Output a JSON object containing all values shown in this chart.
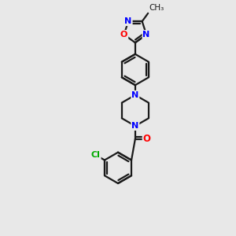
{
  "background_color": "#e8e8e8",
  "bond_color": "#1a1a1a",
  "n_color": "#0000ff",
  "o_color": "#ff0000",
  "cl_color": "#00aa00",
  "text_color": "#1a1a1a",
  "line_width": 1.6,
  "fig_size": [
    3.0,
    3.0
  ],
  "dpi": 100,
  "xlim": [
    -0.5,
    0.6
  ],
  "ylim": [
    -0.85,
    0.75
  ]
}
